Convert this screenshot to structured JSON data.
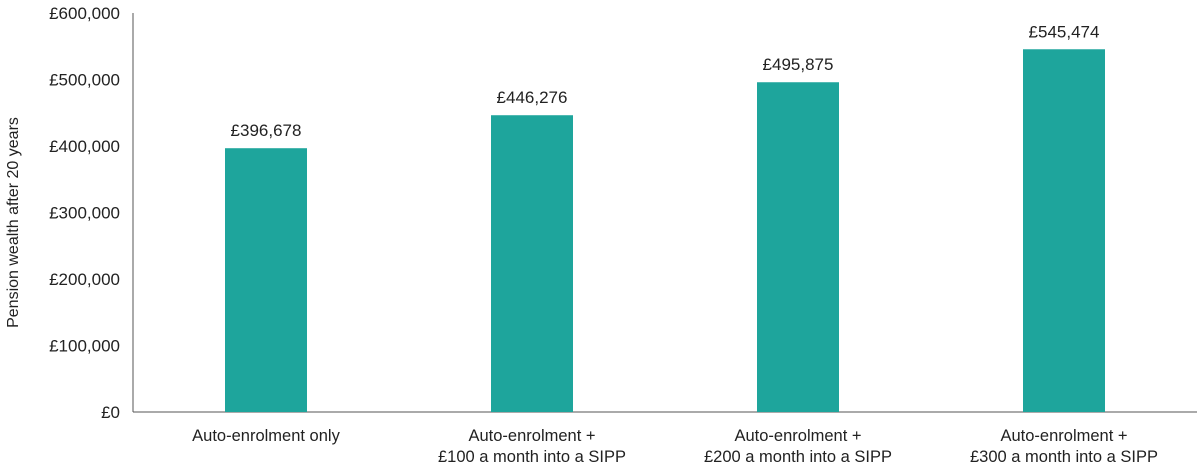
{
  "chart_data": {
    "type": "bar",
    "title": "",
    "xlabel": "",
    "ylabel": "Pension wealth after 20 years",
    "categories": [
      [
        "Auto-enrolment only"
      ],
      [
        "Auto-enrolment +",
        "£100 a month into a SIPP"
      ],
      [
        "Auto-enrolment +",
        "£200 a month into a SIPP"
      ],
      [
        "Auto-enrolment +",
        "£300 a month into a SIPP"
      ]
    ],
    "values": [
      396678,
      446276,
      495875,
      545474
    ],
    "data_labels": [
      "£396,678",
      "£446,276",
      "£495,875",
      "£545,474"
    ],
    "ylim": [
      0,
      600000
    ],
    "yticks": [
      0,
      100000,
      200000,
      300000,
      400000,
      500000,
      600000
    ],
    "ytick_labels": [
      "£0",
      "£100,000",
      "£200,000",
      "£300,000",
      "£400,000",
      "£500,000",
      "£600,000"
    ],
    "grid": false,
    "bar_color": "#1ea59c",
    "axis_color": "#555555"
  }
}
